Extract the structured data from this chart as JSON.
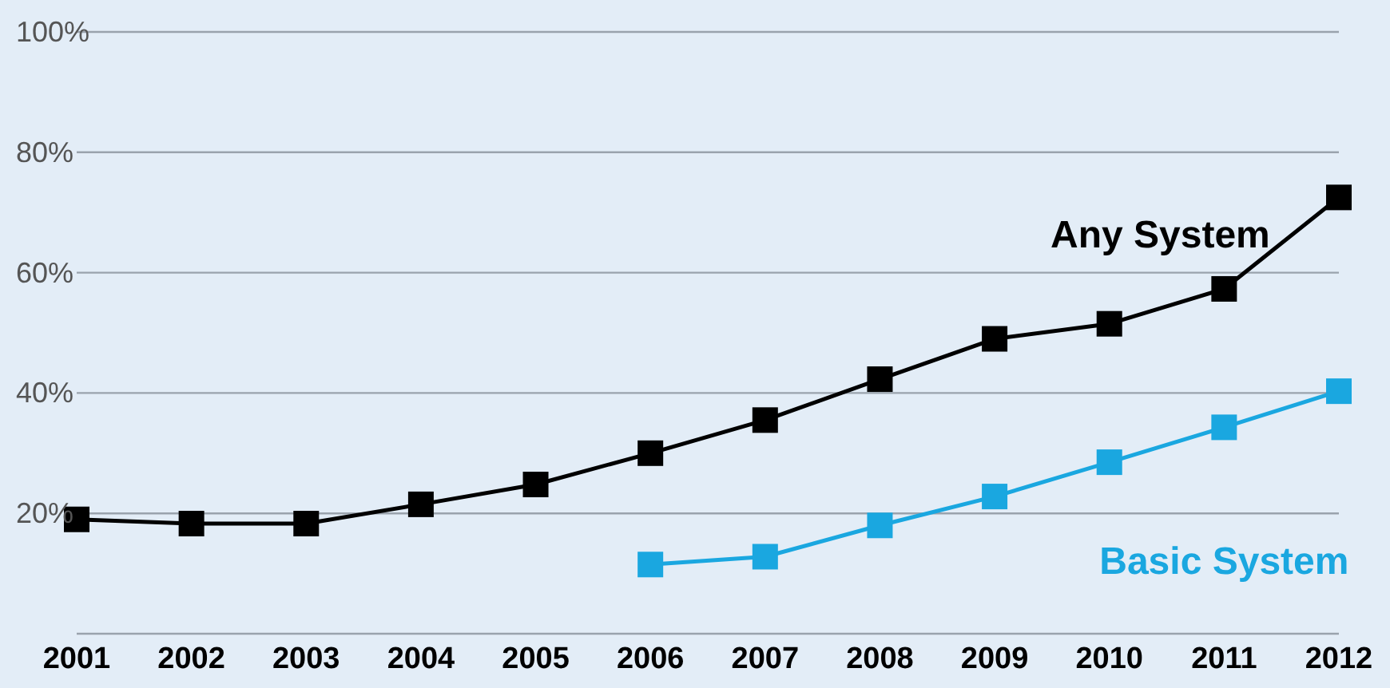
{
  "chart_data": {
    "type": "line",
    "categories": [
      "2001",
      "2002",
      "2003",
      "2004",
      "2005",
      "2006",
      "2007",
      "2008",
      "2009",
      "2010",
      "2011",
      "2012"
    ],
    "series": [
      {
        "name": "Any System",
        "color": "#000000",
        "values": [
          19,
          18.3,
          18.3,
          21.5,
          24.8,
          30,
          35.5,
          42.3,
          49,
          51.5,
          57.3,
          72.5
        ]
      },
      {
        "name": "Basic System",
        "color": "#1aa7e0",
        "values": [
          null,
          null,
          null,
          null,
          null,
          11.5,
          12.8,
          18,
          22.8,
          28.5,
          34.3,
          40.3
        ]
      }
    ],
    "ylim": [
      0,
      100
    ],
    "yticks": [
      {
        "value": 20,
        "label": "20%"
      },
      {
        "value": 40,
        "label": "40%"
      },
      {
        "value": 60,
        "label": "60%"
      },
      {
        "value": 80,
        "label": "80%"
      },
      {
        "value": 100,
        "label": "100%"
      }
    ],
    "grid": "y",
    "legend": false,
    "marker": "square",
    "line_style": "solid"
  }
}
